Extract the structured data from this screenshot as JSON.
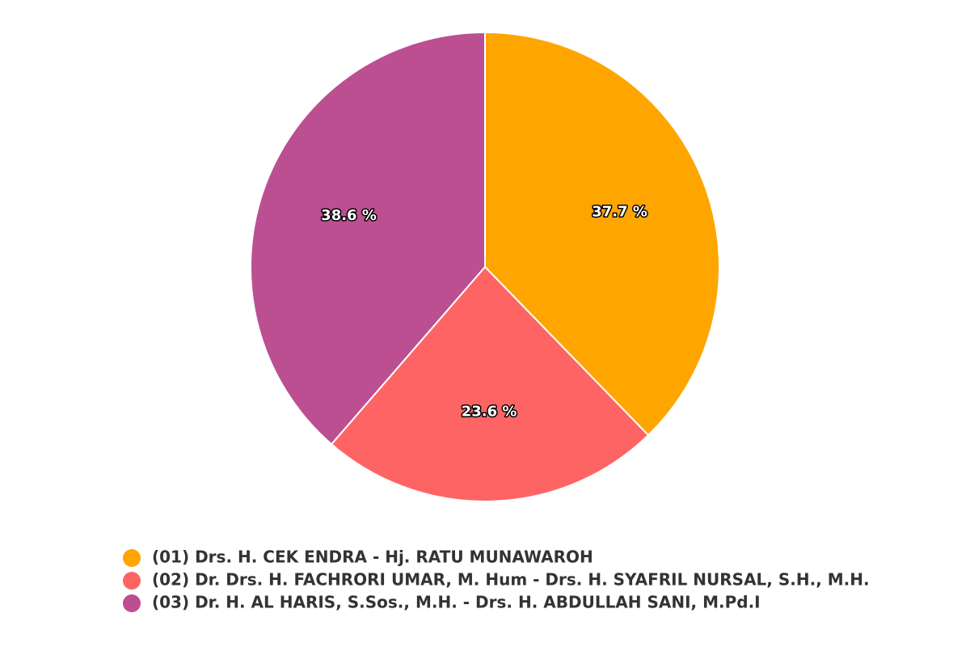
{
  "chart_data": {
    "type": "pie",
    "categories": [
      "(01) Drs. H. CEK ENDRA - Hj. RATU MUNAWAROH",
      "(02) Dr. Drs. H. FACHRORI UMAR, M. Hum - Drs. H. SYAFRIL NURSAL, S.H., M.H.",
      "(03) Dr. H. AL HARIS, S.Sos., M.H. - Drs. H. ABDULLAH SANI, M.Pd.I"
    ],
    "values": [
      37.7,
      23.6,
      38.6
    ],
    "value_labels": [
      "37.7 %",
      "23.6 %",
      "38.6 %"
    ],
    "colors": [
      "#ffa500",
      "#fe6464",
      "#bb4f91"
    ],
    "legend": "bottom"
  }
}
